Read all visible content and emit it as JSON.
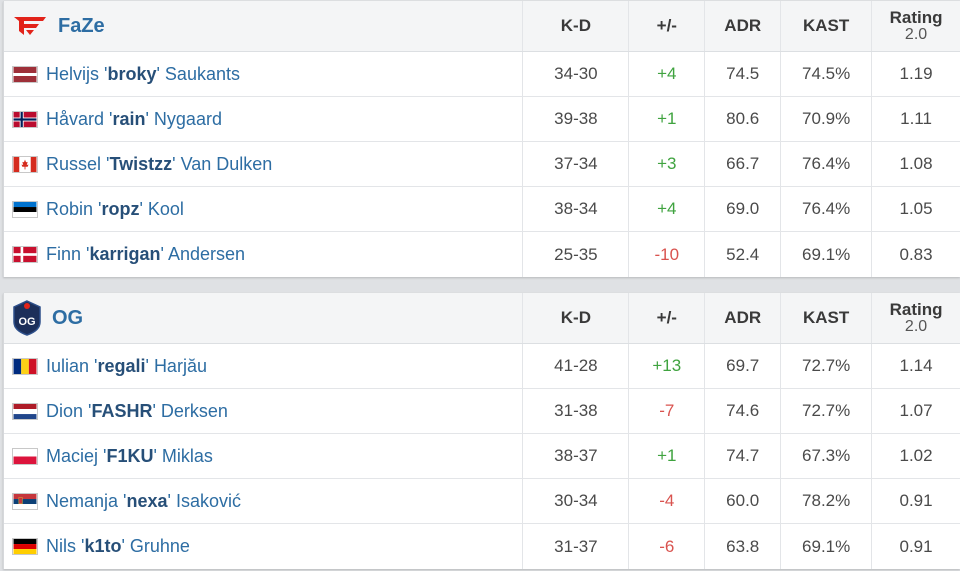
{
  "colors": {
    "positive": "#3fa33f",
    "negative": "#d9534f",
    "link": "#2d6da3"
  },
  "columns": {
    "kd": "K-D",
    "plus_minus": "+/-",
    "adr": "ADR",
    "kast": "KAST",
    "rating": "Rating",
    "rating_sub": "2.0"
  },
  "teams": [
    {
      "name": "FaZe",
      "logo_icon": "faze-logo-icon",
      "players": [
        {
          "first": "Helvijs '",
          "nick": "broky",
          "last": "' Saukants",
          "flag": "latvia",
          "kd": "34-30",
          "pm": "+4",
          "pm_sign": "pos",
          "adr": "74.5",
          "kast": "74.5%",
          "rating": "1.19"
        },
        {
          "first": "Håvard '",
          "nick": "rain",
          "last": "' Nygaard",
          "flag": "norway",
          "kd": "39-38",
          "pm": "+1",
          "pm_sign": "pos",
          "adr": "80.6",
          "kast": "70.9%",
          "rating": "1.11"
        },
        {
          "first": "Russel '",
          "nick": "Twistzz",
          "last": "' Van Dulken",
          "flag": "canada",
          "kd": "37-34",
          "pm": "+3",
          "pm_sign": "pos",
          "adr": "66.7",
          "kast": "76.4%",
          "rating": "1.08"
        },
        {
          "first": "Robin '",
          "nick": "ropz",
          "last": "' Kool",
          "flag": "estonia",
          "kd": "38-34",
          "pm": "+4",
          "pm_sign": "pos",
          "adr": "69.0",
          "kast": "76.4%",
          "rating": "1.05"
        },
        {
          "first": "Finn '",
          "nick": "karrigan",
          "last": "' Andersen",
          "flag": "denmark",
          "kd": "25-35",
          "pm": "-10",
          "pm_sign": "neg",
          "adr": "52.4",
          "kast": "69.1%",
          "rating": "0.83"
        }
      ]
    },
    {
      "name": "OG",
      "logo_icon": "og-logo-icon",
      "players": [
        {
          "first": "Iulian '",
          "nick": "regali",
          "last": "' Harjău",
          "flag": "romania",
          "kd": "41-28",
          "pm": "+13",
          "pm_sign": "pos",
          "adr": "69.7",
          "kast": "72.7%",
          "rating": "1.14"
        },
        {
          "first": "Dion '",
          "nick": "FASHR",
          "last": "' Derksen",
          "flag": "netherlands",
          "kd": "31-38",
          "pm": "-7",
          "pm_sign": "neg",
          "adr": "74.6",
          "kast": "72.7%",
          "rating": "1.07"
        },
        {
          "first": "Maciej '",
          "nick": "F1KU",
          "last": "' Miklas",
          "flag": "poland",
          "kd": "38-37",
          "pm": "+1",
          "pm_sign": "pos",
          "adr": "74.7",
          "kast": "67.3%",
          "rating": "1.02"
        },
        {
          "first": "Nemanja '",
          "nick": "nexa",
          "last": "' Isaković",
          "flag": "serbia",
          "kd": "30-34",
          "pm": "-4",
          "pm_sign": "neg",
          "adr": "60.0",
          "kast": "78.2%",
          "rating": "0.91"
        },
        {
          "first": "Nils '",
          "nick": "k1to",
          "last": "' Gruhne",
          "flag": "germany",
          "kd": "31-37",
          "pm": "-6",
          "pm_sign": "neg",
          "adr": "63.8",
          "kast": "69.1%",
          "rating": "0.91"
        }
      ]
    }
  ]
}
